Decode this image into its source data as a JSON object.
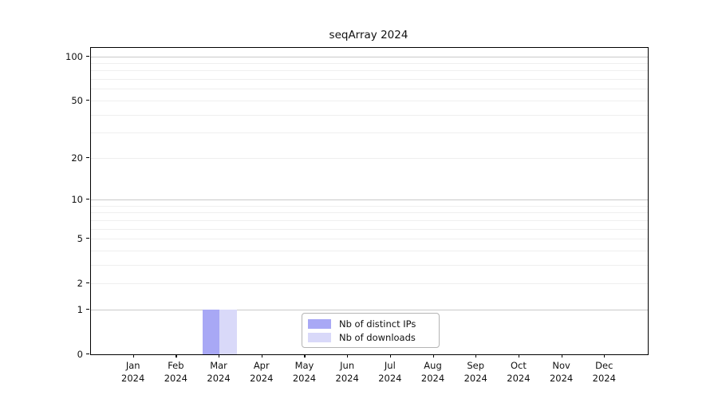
{
  "title": "seqArray 2024",
  "chart_data": {
    "type": "bar",
    "title": "seqArray 2024",
    "categories": [
      "Jan 2024",
      "Feb 2024",
      "Mar 2024",
      "Apr 2024",
      "May 2024",
      "Jun 2024",
      "Jul 2024",
      "Aug 2024",
      "Sep 2024",
      "Oct 2024",
      "Nov 2024",
      "Dec 2024"
    ],
    "series": [
      {
        "name": "Nb of distinct IPs",
        "color": "#a8a8f5",
        "values": [
          0,
          0,
          1,
          0,
          0,
          0,
          0,
          0,
          0,
          0,
          0,
          0
        ]
      },
      {
        "name": "Nb of downloads",
        "color": "#d9d9f9",
        "values": [
          0,
          0,
          1,
          0,
          0,
          0,
          0,
          0,
          0,
          0,
          0,
          0
        ]
      }
    ],
    "xlabel": "",
    "ylabel": "",
    "yscale": "log1p",
    "ylim": [
      0,
      115
    ],
    "yticks": [
      0,
      1,
      2,
      5,
      10,
      20,
      50,
      100
    ],
    "minor_gridlines": [
      2,
      3,
      4,
      5,
      6,
      7,
      8,
      9,
      20,
      30,
      40,
      50,
      60,
      70,
      80,
      90
    ],
    "major_gridlines": [
      1,
      10,
      100
    ],
    "grid": "horizontal",
    "legend_position": "bottom-center",
    "colors": {
      "grid_major": "#c9c9c9",
      "grid_minor": "#efefef",
      "axis": "#000000",
      "text": "#111111",
      "background": "#ffffff"
    }
  },
  "legend": {
    "items": [
      {
        "label": "Nb of distinct IPs",
        "swatch": "#a8a8f5"
      },
      {
        "label": "Nb of downloads",
        "swatch": "#d9d9f9"
      }
    ]
  }
}
